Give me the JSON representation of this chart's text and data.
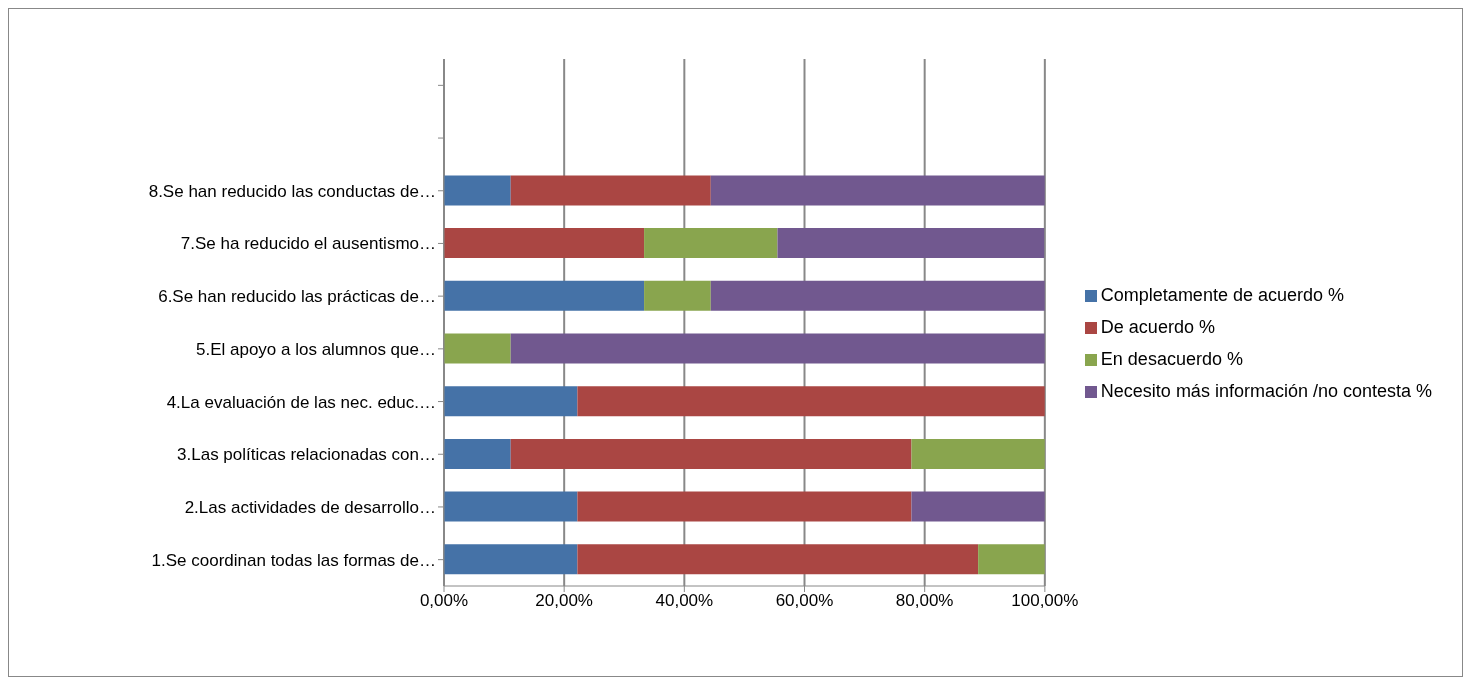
{
  "chart_data": {
    "type": "bar",
    "orientation": "horizontal",
    "stacked": true,
    "categories": [
      null,
      null,
      "8.Se han reducido las conductas de…",
      "7.Se ha reducido el ausentismo…",
      "6.Se han reducido las prácticas de…",
      "5.El apoyo a los alumnos que…",
      "4.La evaluación de las nec. educ.…",
      "3.Las políticas relacionadas con…",
      "2.Las actividades de desarrollo…",
      "1.Se coordinan todas las formas de…"
    ],
    "series": [
      {
        "name": "Completamente de acuerdo %",
        "color": "#4572a7",
        "values": [
          null,
          null,
          11.1,
          0,
          33.3,
          0,
          22.2,
          11.1,
          22.2,
          22.2
        ]
      },
      {
        "name": "De acuerdo %",
        "color": "#aa4643",
        "values": [
          null,
          null,
          33.3,
          33.3,
          0,
          0,
          77.8,
          66.7,
          55.6,
          66.7
        ]
      },
      {
        "name": "En desacuerdo %",
        "color": "#89a54e",
        "values": [
          null,
          null,
          0,
          22.2,
          11.1,
          11.1,
          0,
          22.2,
          0,
          11.1
        ]
      },
      {
        "name": "Necesito más información /no contesta %",
        "color": "#71588f",
        "values": [
          null,
          null,
          55.6,
          44.4,
          55.6,
          88.9,
          0,
          0,
          22.2,
          0
        ]
      }
    ],
    "xlim": [
      0,
      100
    ],
    "xticks": [
      {
        "value": 0,
        "label": "0,00%"
      },
      {
        "value": 20,
        "label": "20,00%"
      },
      {
        "value": 40,
        "label": "40,00%"
      },
      {
        "value": 60,
        "label": "60,00%"
      },
      {
        "value": 80,
        "label": "80,00%"
      },
      {
        "value": 100,
        "label": "100,00%"
      }
    ],
    "grid": "x",
    "legend": "right"
  }
}
